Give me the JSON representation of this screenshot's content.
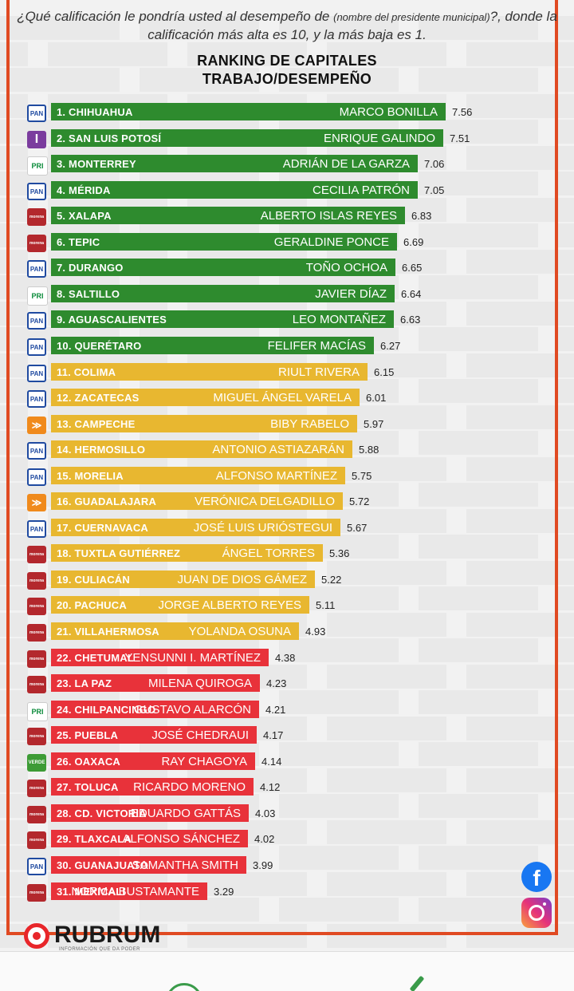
{
  "question": {
    "part1": "¿Qué calificación le pondría usted al desempeño de ",
    "note": "(nombre del presidente municipal)",
    "part2": "?, donde la calificación más alta es 10, y la más baja es 1."
  },
  "title_line1": "RANKING DE CAPITALES",
  "title_line2": "TRABAJO/DESEMPEÑO",
  "colors": {
    "green": "#2e8b2e",
    "yellow": "#e8b730",
    "red": "#e8323a"
  },
  "chart_data": {
    "type": "bar",
    "orientation": "horizontal",
    "title": "RANKING DE CAPITALES TRABAJO/DESEMPEÑO",
    "xlim": [
      0,
      10
    ],
    "categories": [
      "1. CHIHUAHUA",
      "2. SAN LUIS POTOSÍ",
      "3. MONTERREY",
      "4. MÉRIDA",
      "5. XALAPA",
      "6. TEPIC",
      "7. DURANGO",
      "8. SALTILLO",
      "9. AGUASCALIENTES",
      "10. QUERÉTARO",
      "11. COLIMA",
      "12. ZACATECAS",
      "13. CAMPECHE",
      "14. HERMOSILLO",
      "15. MORELIA",
      "16. GUADALAJARA",
      "17. CUERNAVACA",
      "18. TUXTLA GUTIÉRREZ",
      "19. CULIACÁN",
      "20. PACHUCA",
      "21. VILLAHERMOSA",
      "22. CHETUMAL",
      "23. LA PAZ",
      "24. CHILPANCINGO",
      "25. PUEBLA",
      "26. OAXACA",
      "27. TOLUCA",
      "28. CD. VICTORIA",
      "29. TLAXCALA",
      "30. GUANAJUATO",
      "31. MEXICALI"
    ],
    "values": [
      7.56,
      7.51,
      7.06,
      7.05,
      6.83,
      6.69,
      6.65,
      6.64,
      6.63,
      6.27,
      6.15,
      6.01,
      5.97,
      5.88,
      5.75,
      5.72,
      5.67,
      5.36,
      5.22,
      5.11,
      4.93,
      4.38,
      4.23,
      4.21,
      4.17,
      4.14,
      4.12,
      4.03,
      4.02,
      3.99,
      3.29
    ],
    "value_labels": [
      "7.56",
      "7.51",
      "7.06",
      "7.05",
      "6.83",
      "6.69",
      "6.65",
      "6.64",
      "6.63",
      "6.27",
      "6.15",
      "6.01",
      "5.97",
      "5.88",
      "5.75",
      "5.72",
      "5.67",
      "5.36",
      "5.22",
      "5.11",
      "4.93",
      "4.38",
      "4.23",
      "4.21",
      "4.17",
      "4.14",
      "4.12",
      "4.03",
      "4.02",
      "3.99",
      "3.29"
    ],
    "mayors": [
      "MARCO BONILLA",
      "ENRIQUE GALINDO",
      "ADRIÁN DE LA GARZA",
      "CECILIA PATRÓN",
      "ALBERTO ISLAS REYES",
      "GERALDINE PONCE",
      "TOÑO OCHOA",
      "JAVIER DÍAZ",
      "LEO MONTAÑEZ",
      "FELIFER MACÍAS",
      "RIULT RIVERA",
      "MIGUEL ÁNGEL VARELA",
      "BIBY RABELO",
      "ANTONIO ASTIAZARÁN",
      "ALFONSO MARTÍNEZ",
      "VERÓNICA DELGADILLO",
      "JOSÉ LUIS URIÓSTEGUI",
      "ÁNGEL TORRES",
      "JUAN DE DIOS GÁMEZ",
      "JORGE ALBERTO REYES",
      "YOLANDA OSUNA",
      "YENSUNNI I. MARTÍNEZ",
      "MILENA QUIROGA",
      "GUSTAVO ALARCÓN",
      "JOSÉ CHEDRAUI",
      "RAY CHAGOYA",
      "RICARDO MORENO",
      "EDUARDO GATTÁS",
      "ALFONSO SÁNCHEZ",
      "SAMANTHA SMITH",
      "NORMA BUSTAMANTE"
    ],
    "parties": [
      "PAN",
      "IND",
      "PRI",
      "PAN",
      "MORENA",
      "MORENA",
      "PAN",
      "PRI",
      "PAN",
      "PAN",
      "PAN",
      "PAN",
      "MC",
      "PAN",
      "PAN",
      "MC",
      "PAN",
      "MORENA",
      "MORENA",
      "MORENA",
      "MORENA",
      "MORENA",
      "MORENA",
      "PRI",
      "MORENA",
      "VERDE",
      "MORENA",
      "MORENA",
      "MORENA",
      "PAN",
      "MORENA"
    ],
    "bar_colors": [
      "green",
      "green",
      "green",
      "green",
      "green",
      "green",
      "green",
      "green",
      "green",
      "green",
      "yellow",
      "yellow",
      "yellow",
      "yellow",
      "yellow",
      "yellow",
      "yellow",
      "yellow",
      "yellow",
      "yellow",
      "yellow",
      "red",
      "red",
      "red",
      "red",
      "red",
      "red",
      "red",
      "red",
      "red",
      "red"
    ]
  },
  "party_logos": {
    "PAN": "PAN",
    "PRI": "PRI",
    "MORENA": "morena",
    "IND": "I",
    "MC": "≫",
    "VERDE": "VERDE"
  },
  "brand": {
    "name": "RUBRUM",
    "tagline": "INFORMACIÓN QUE DA PODER"
  },
  "social": {
    "facebook_icon": "f"
  }
}
